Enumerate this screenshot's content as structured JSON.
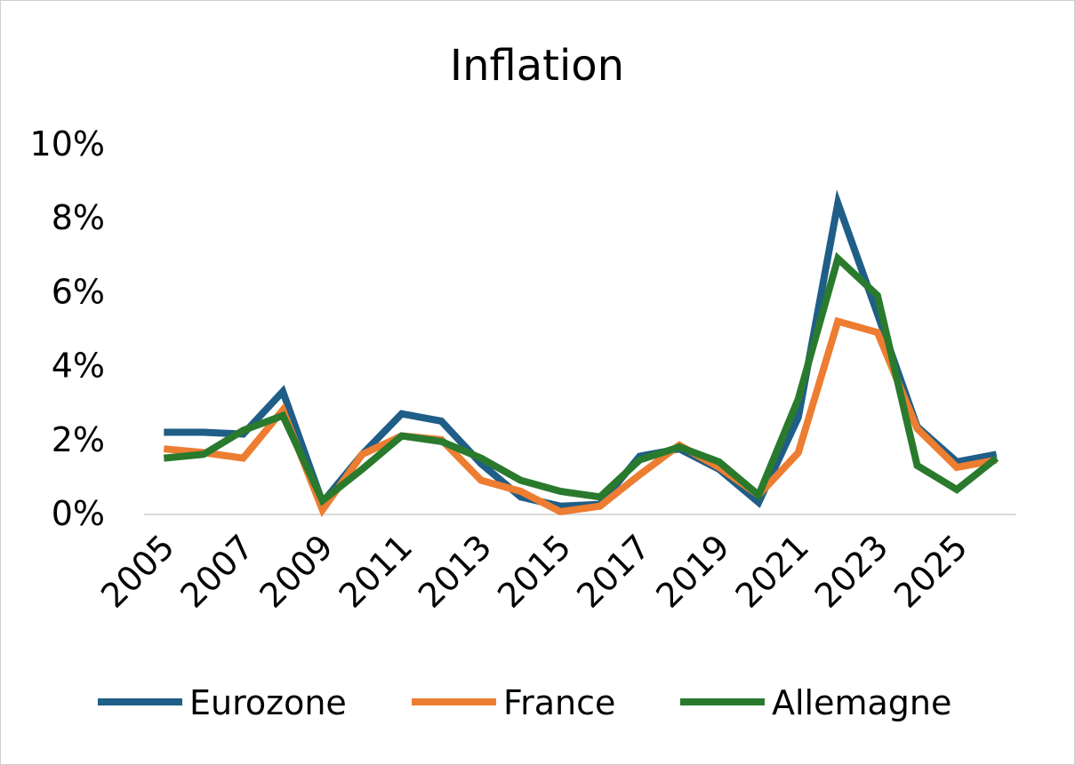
{
  "chart_data": {
    "type": "line",
    "title": "Inflation",
    "xlabel": "",
    "ylabel": "",
    "x": [
      2005,
      2006,
      2007,
      2008,
      2009,
      2010,
      2011,
      2012,
      2013,
      2014,
      2015,
      2016,
      2017,
      2018,
      2019,
      2020,
      2021,
      2022,
      2023,
      2024,
      2025,
      2026
    ],
    "x_tick_labels": [
      "2005",
      "2007",
      "2009",
      "2011",
      "2013",
      "2015",
      "2017",
      "2019",
      "2021",
      "2023",
      "2025"
    ],
    "y_tick_labels": [
      "0%",
      "2%",
      "4%",
      "6%",
      "8%",
      "10%"
    ],
    "ylim": [
      0,
      10
    ],
    "y_unit": "%",
    "grid": false,
    "legend_position": "bottom",
    "series": [
      {
        "name": "Eurozone",
        "color": "#1f5e87",
        "values": [
          2.2,
          2.2,
          2.15,
          3.3,
          0.3,
          1.6,
          2.7,
          2.5,
          1.35,
          0.45,
          0.2,
          0.25,
          1.55,
          1.75,
          1.2,
          0.3,
          2.6,
          8.4,
          5.4,
          2.35,
          1.4,
          1.6
        ]
      },
      {
        "name": "France",
        "color": "#ed7d31",
        "values": [
          1.75,
          1.65,
          1.5,
          2.8,
          0.1,
          1.6,
          2.1,
          2.0,
          0.9,
          0.6,
          0.05,
          0.2,
          1.05,
          1.85,
          1.25,
          0.5,
          1.65,
          5.2,
          4.9,
          2.3,
          1.25,
          1.45
        ]
      },
      {
        "name": "Allemagne",
        "color": "#2a7a2e",
        "values": [
          1.5,
          1.6,
          2.25,
          2.65,
          0.35,
          1.2,
          2.1,
          1.95,
          1.5,
          0.9,
          0.6,
          0.45,
          1.45,
          1.8,
          1.4,
          0.5,
          3.1,
          6.9,
          5.9,
          1.3,
          0.65,
          1.5
        ]
      }
    ]
  }
}
